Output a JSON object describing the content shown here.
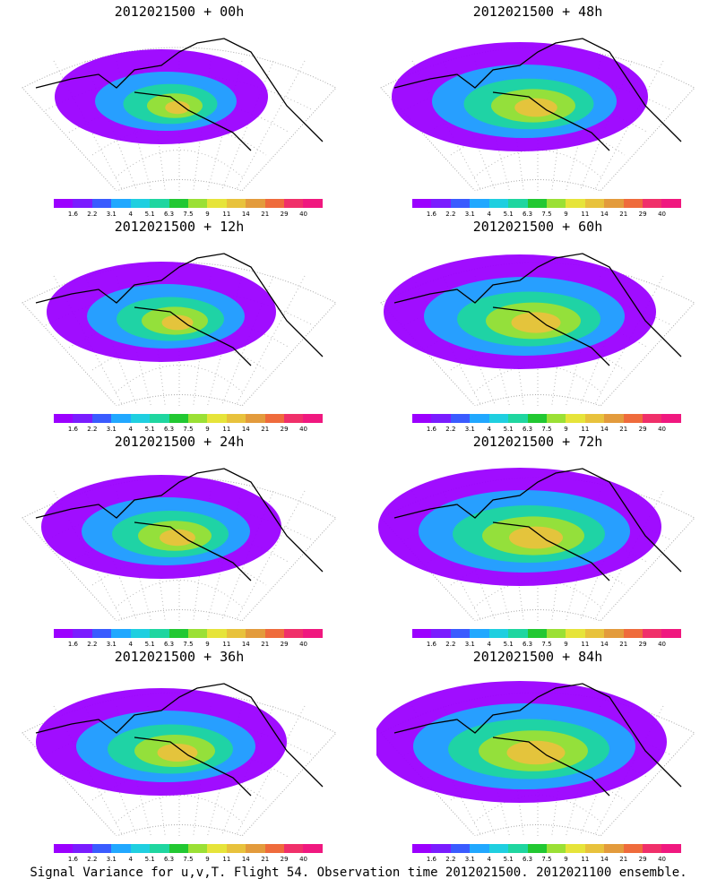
{
  "panels": [
    {
      "title": "2012021500 + 00h",
      "intensity": 0.15
    },
    {
      "title": "2012021500 + 48h",
      "intensity": 0.55
    },
    {
      "title": "2012021500 + 12h",
      "intensity": 0.3
    },
    {
      "title": "2012021500 + 60h",
      "intensity": 0.7
    },
    {
      "title": "2012021500 + 24h",
      "intensity": 0.4
    },
    {
      "title": "2012021500 + 72h",
      "intensity": 0.8
    },
    {
      "title": "2012021500 + 36h",
      "intensity": 0.5
    },
    {
      "title": "2012021500 + 84h",
      "intensity": 0.9
    }
  ],
  "colorbar": {
    "labels": [
      "1.6",
      "2.2",
      "3.1",
      "4",
      "5.1",
      "6.3",
      "7.5",
      "9",
      "11",
      "14",
      "21",
      "29",
      "40"
    ],
    "colors": [
      "#9b00ff",
      "#7a1cff",
      "#3a5bff",
      "#21a8ff",
      "#1fcfe0",
      "#1fd6a0",
      "#22c832",
      "#9be035",
      "#e6e43a",
      "#e8c23c",
      "#e39b3c",
      "#ef6b3c",
      "#f0306a",
      "#f0187f"
    ]
  },
  "caption": "Signal Variance for u,v,T. Flight 54. Observation time 2012021500. 2012021100 ensemble."
}
